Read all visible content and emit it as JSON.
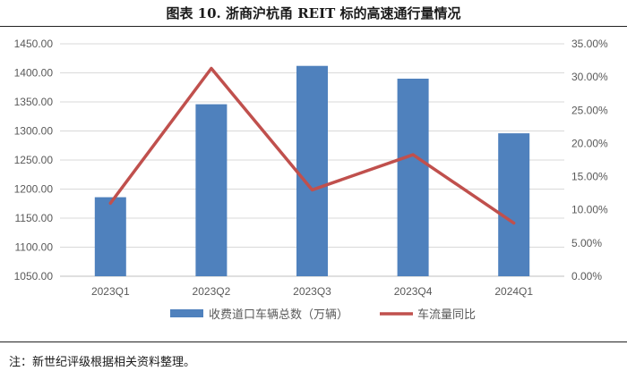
{
  "title": "图表 10.   浙商沪杭甬 REIT 标的高速通行量情况",
  "note": "注：新世纪评级根据相关资料整理。",
  "colors": {
    "bar": "#4f81bd",
    "line": "#c0504d",
    "grid": "#d9d9d9",
    "axis": "#bfbfbf",
    "tick": "#595959"
  },
  "chart_data": {
    "type": "bar",
    "categories": [
      "2023Q1",
      "2023Q2",
      "2023Q3",
      "2023Q4",
      "2024Q1"
    ],
    "series": [
      {
        "name": "收费道口车辆总数（万辆）",
        "type": "bar",
        "axis": "left",
        "values": [
          1186,
          1346,
          1412,
          1390,
          1296
        ]
      },
      {
        "name": "车流量同比",
        "type": "line",
        "axis": "right",
        "values": [
          11.0,
          31.3,
          13.0,
          18.3,
          8.0
        ]
      }
    ],
    "ylim_left": [
      1050,
      1450
    ],
    "yticks_left": [
      "1050.00",
      "1100.00",
      "1150.00",
      "1200.00",
      "1250.00",
      "1300.00",
      "1350.00",
      "1400.00",
      "1450.00"
    ],
    "ylim_right": [
      0,
      35
    ],
    "yticks_right": [
      "0.00%",
      "5.00%",
      "10.00%",
      "15.00%",
      "20.00%",
      "25.00%",
      "30.00%",
      "35.00%"
    ],
    "grid": true,
    "legend_position": "bottom"
  }
}
